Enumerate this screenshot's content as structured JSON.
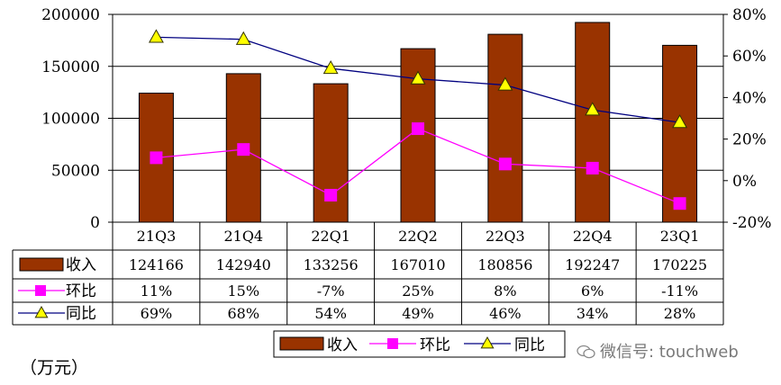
{
  "unit_label": "（万元）",
  "watermark": "微信号: touchweb",
  "colors": {
    "revenue": "#993300",
    "qoq": "#ff00ff",
    "yoy_marker": "#ffff00",
    "yoy_line": "#000080"
  },
  "chart_data": {
    "type": "bar",
    "categories": [
      "21Q3",
      "21Q4",
      "22Q1",
      "22Q2",
      "22Q3",
      "22Q4",
      "23Q1"
    ],
    "series": [
      {
        "name": "收入",
        "type": "bar",
        "axis": "left",
        "values": [
          124166,
          142940,
          133256,
          167010,
          180856,
          192247,
          170225
        ]
      },
      {
        "name": "环比",
        "type": "line",
        "axis": "right",
        "values": [
          11,
          15,
          -7,
          25,
          8,
          6,
          -11
        ],
        "labels": [
          "11%",
          "15%",
          "-7%",
          "25%",
          "8%",
          "6%",
          "-11%"
        ]
      },
      {
        "name": "同比",
        "type": "line",
        "axis": "right",
        "values": [
          69,
          68,
          54,
          49,
          46,
          34,
          28
        ],
        "labels": [
          "69%",
          "68%",
          "54%",
          "49%",
          "46%",
          "34%",
          "28%"
        ]
      }
    ],
    "y_left": {
      "min": 0,
      "max": 200000,
      "ticks": [
        "0",
        "50000",
        "100000",
        "150000",
        "200000"
      ]
    },
    "y_right": {
      "min": -20,
      "max": 80,
      "ticks": [
        "-20%",
        "0%",
        "20%",
        "40%",
        "60%",
        "80%"
      ]
    },
    "grid": "horizontal",
    "legend_position": "bottom",
    "data_table": true
  }
}
